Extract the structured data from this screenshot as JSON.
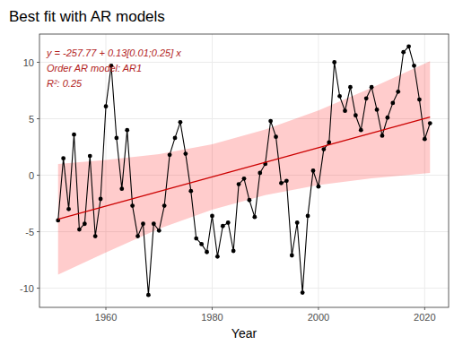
{
  "chart_data": {
    "type": "line",
    "title": "Best fit with AR models",
    "annotations": [
      "y = -257.77 + 0.13[0.01;0.25] x",
      "Order AR model: AR1",
      "R²: 0.25"
    ],
    "x_label": "Year",
    "x": [
      1951,
      1952,
      1953,
      1954,
      1955,
      1956,
      1957,
      1958,
      1959,
      1960,
      1961,
      1962,
      1963,
      1964,
      1965,
      1966,
      1967,
      1968,
      1969,
      1970,
      1971,
      1972,
      1973,
      1974,
      1975,
      1976,
      1977,
      1978,
      1979,
      1980,
      1981,
      1982,
      1983,
      1984,
      1985,
      1986,
      1987,
      1988,
      1989,
      1990,
      1991,
      1992,
      1993,
      1994,
      1995,
      1996,
      1997,
      1998,
      1999,
      2000,
      2001,
      2002,
      2003,
      2004,
      2005,
      2006,
      2007,
      2008,
      2009,
      2010,
      2011,
      2012,
      2013,
      2014,
      2015,
      2016,
      2017,
      2018,
      2019,
      2020,
      2021
    ],
    "series": [
      {
        "type": "line",
        "marker": "circle",
        "color": "#000000",
        "values": [
          -4.0,
          1.5,
          -3.0,
          3.6,
          -4.8,
          -4.3,
          1.7,
          -5.4,
          -2.1,
          6.1,
          9.7,
          3.3,
          -1.2,
          4.0,
          -2.7,
          -5.4,
          -4.3,
          -10.6,
          -4.3,
          -4.9,
          -2.7,
          1.8,
          3.3,
          4.7,
          1.9,
          -1.4,
          -5.6,
          -6.1,
          -6.8,
          -3.6,
          -7.2,
          -4.5,
          -4.2,
          -6.7,
          -0.8,
          -0.3,
          -2.2,
          -3.7,
          0.2,
          1.0,
          4.8,
          3.4,
          -0.7,
          -0.5,
          -7.1,
          -4.2,
          -10.4,
          -3.6,
          0.4,
          -1.0,
          2.3,
          2.9,
          10.0,
          7.0,
          5.7,
          7.8,
          5.3,
          4.0,
          6.8,
          7.8,
          5.8,
          3.5,
          5.1,
          6.4,
          7.4,
          10.9,
          11.4,
          9.7,
          6.7,
          3.2,
          4.6
        ]
      },
      {
        "type": "line",
        "color": "#cc0000",
        "x": [
          1951,
          2021
        ],
        "values": [
          -3.9,
          5.15
        ]
      },
      {
        "type": "area",
        "color": "#ff0000",
        "x": [
          1951,
          1960,
          1970,
          1980,
          1990,
          2000,
          2010,
          2021
        ],
        "lower": [
          -8.8,
          -6.84,
          -4.74,
          -3.05,
          -1.76,
          -0.86,
          -0.27,
          0.2
        ],
        "upper": [
          1.0,
          1.36,
          1.86,
          2.75,
          4.04,
          5.74,
          7.73,
          10.1
        ]
      }
    ],
    "xlim": [
      1947.5,
      2024.5
    ],
    "ylim": [
      -11.7,
      12.5
    ],
    "xticks": [
      1960,
      1980,
      2000,
      2020
    ],
    "yticks": [
      -10,
      -5,
      0,
      5,
      10
    ],
    "grid": true
  }
}
